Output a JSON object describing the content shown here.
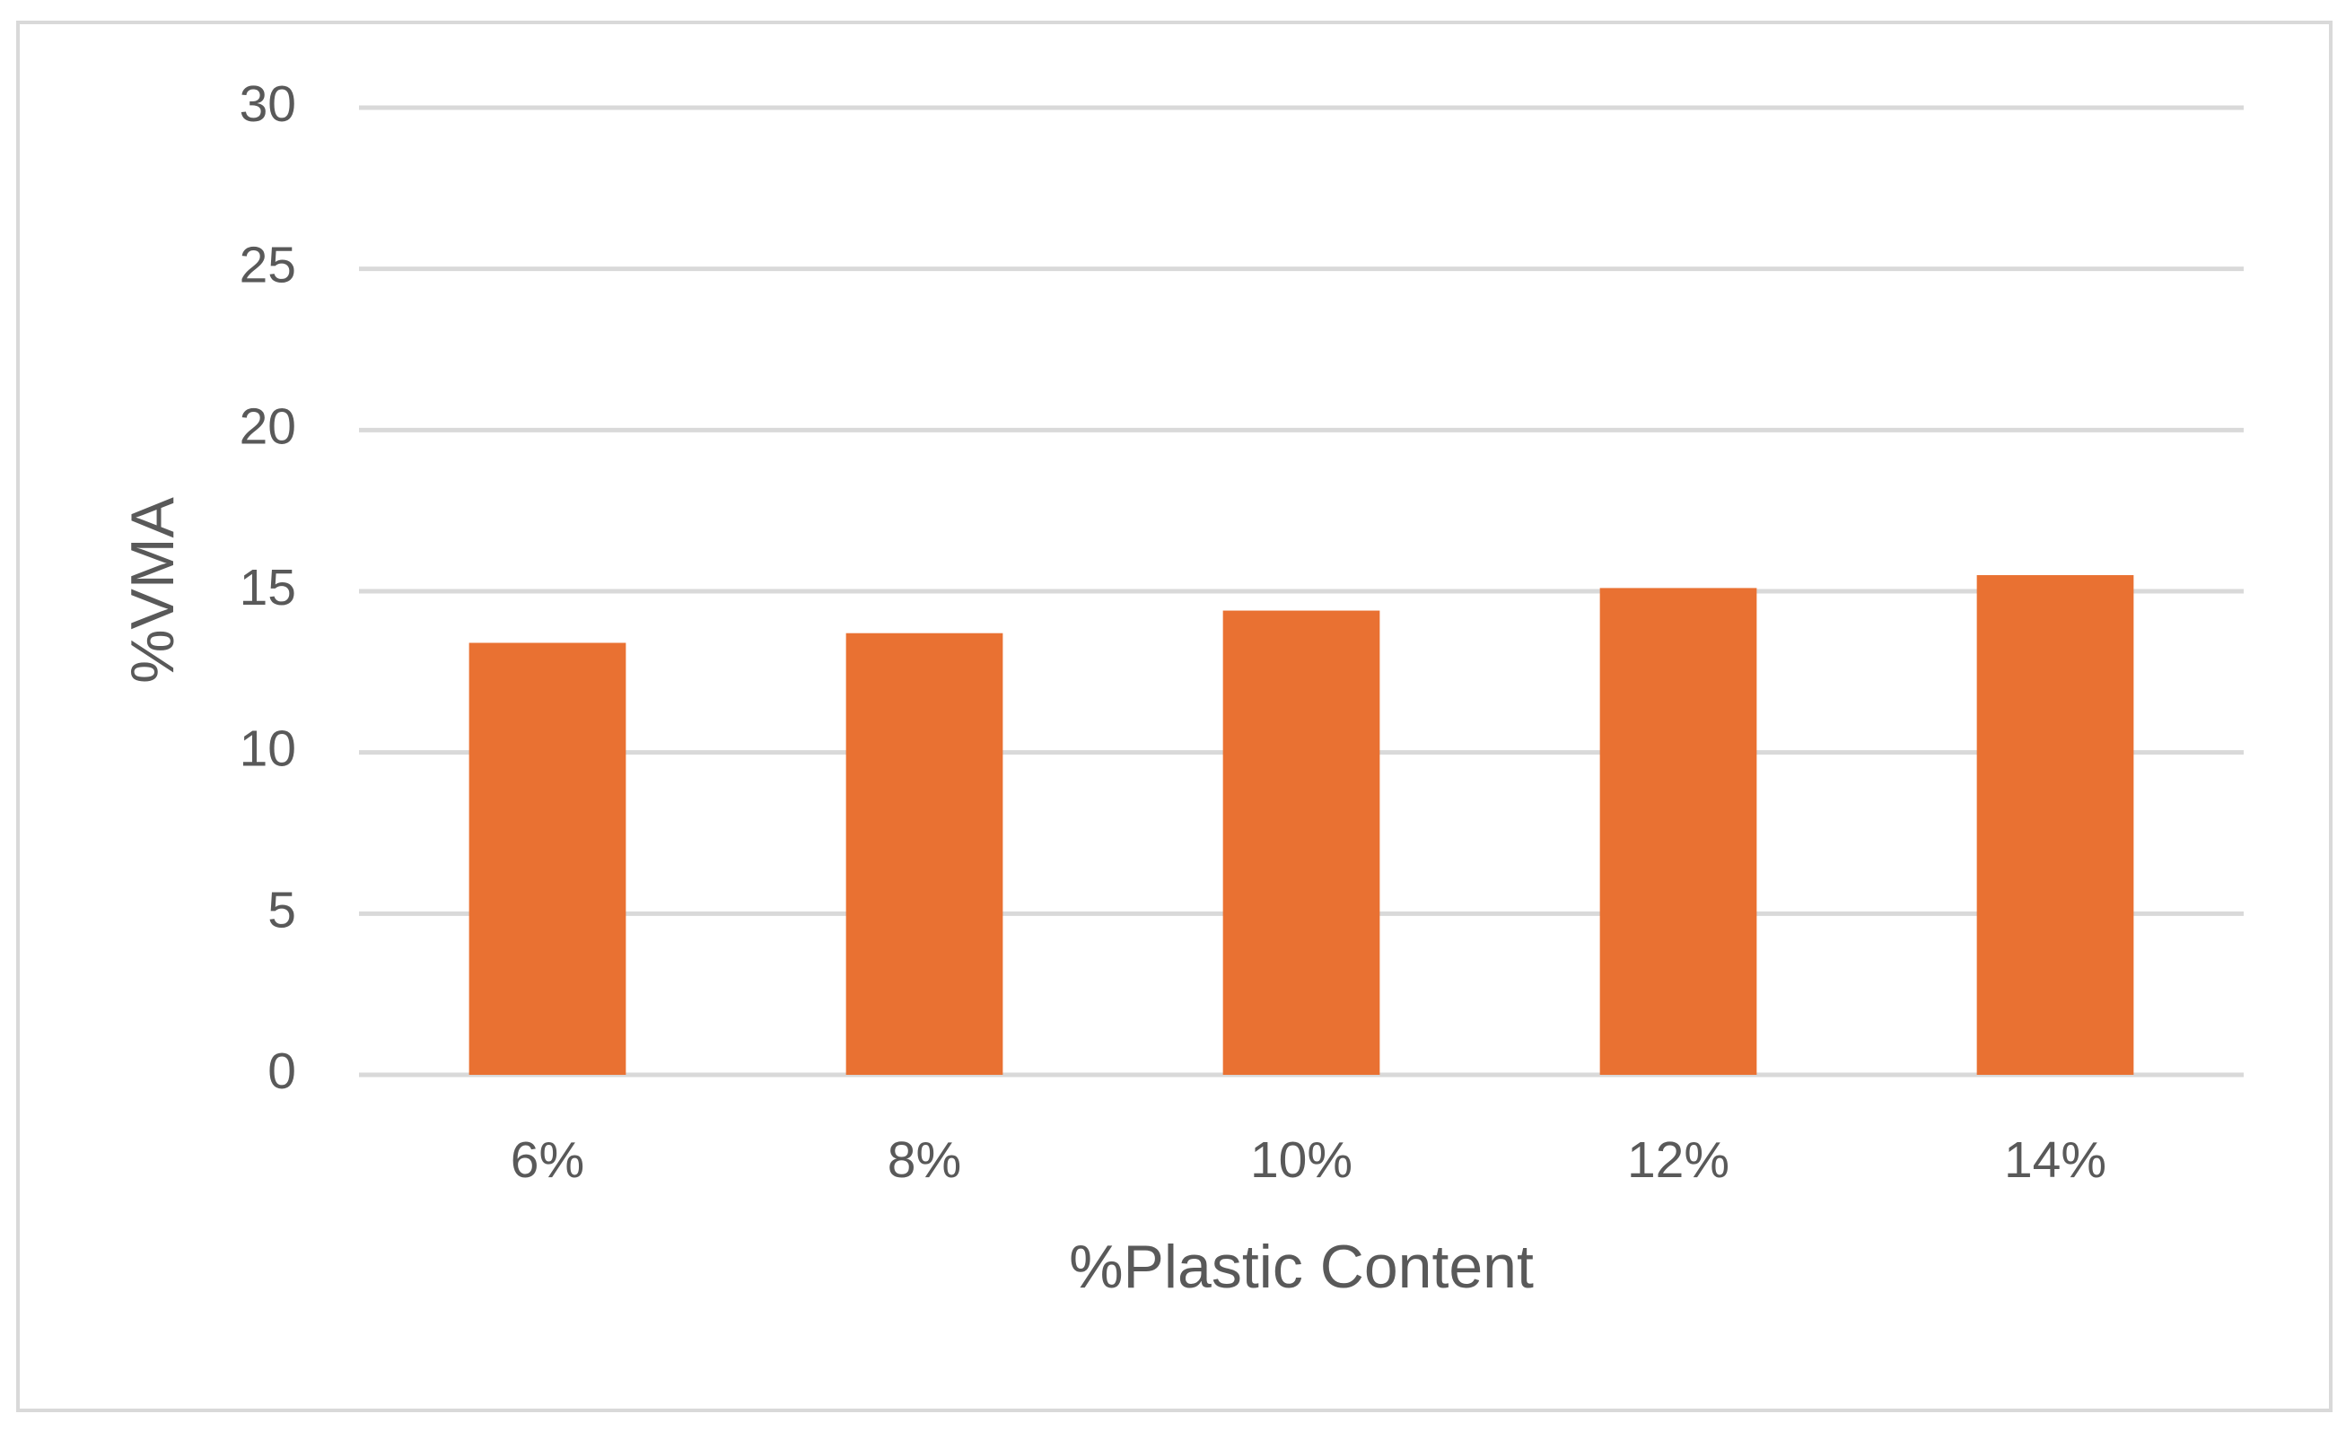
{
  "chart_data": {
    "type": "bar",
    "x_label": "%Plastic Content",
    "y_label": "%VMA",
    "categories": [
      "6%",
      "8%",
      "10%",
      "12%",
      "14%"
    ],
    "values": [
      13.4,
      13.7,
      14.4,
      15.1,
      15.5
    ],
    "color": "#e97132",
    "ylim": [
      0,
      30
    ],
    "yticks": [
      0,
      5,
      10,
      15,
      20,
      25,
      30
    ],
    "grid": true
  }
}
